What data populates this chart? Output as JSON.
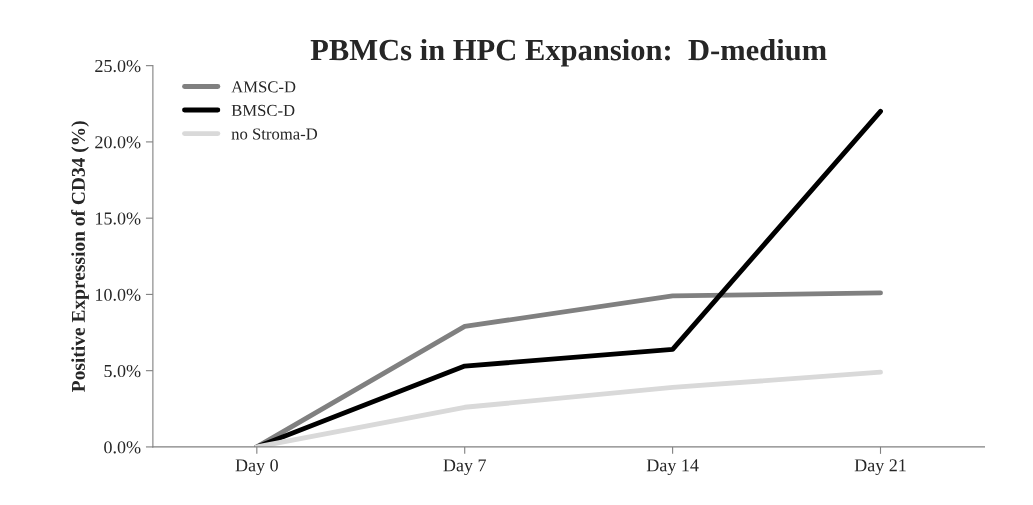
{
  "chart_data": {
    "type": "line",
    "title": "PBMCs in HPC Expansion:  D-medium",
    "ylabel": "Positive Expression of CD34 (%)",
    "categories": [
      "Day 0",
      "Day 7",
      "Day 14",
      "Day 21"
    ],
    "series": [
      {
        "name": "AMSC-D",
        "color": "#808080",
        "values": [
          0.0,
          7.9,
          9.9,
          10.1
        ]
      },
      {
        "name": "BMSC-D",
        "color": "#000000",
        "values": [
          0.0,
          5.3,
          6.4,
          22.0
        ]
      },
      {
        "name": "no Stroma-D",
        "color": "#d9d9d9",
        "values": [
          0.0,
          2.6,
          3.9,
          4.9
        ]
      }
    ],
    "ylim": [
      0,
      25
    ],
    "yticks": [
      {
        "value": 0,
        "label": "0.0%"
      },
      {
        "value": 5,
        "label": "5.0%"
      },
      {
        "value": 10,
        "label": "10.0%"
      },
      {
        "value": 15,
        "label": "15.0%"
      },
      {
        "value": 20,
        "label": "20.0%"
      },
      {
        "value": 25,
        "label": "25.0%"
      }
    ],
    "grid": false,
    "legend": "top left",
    "line_style": "solid"
  }
}
